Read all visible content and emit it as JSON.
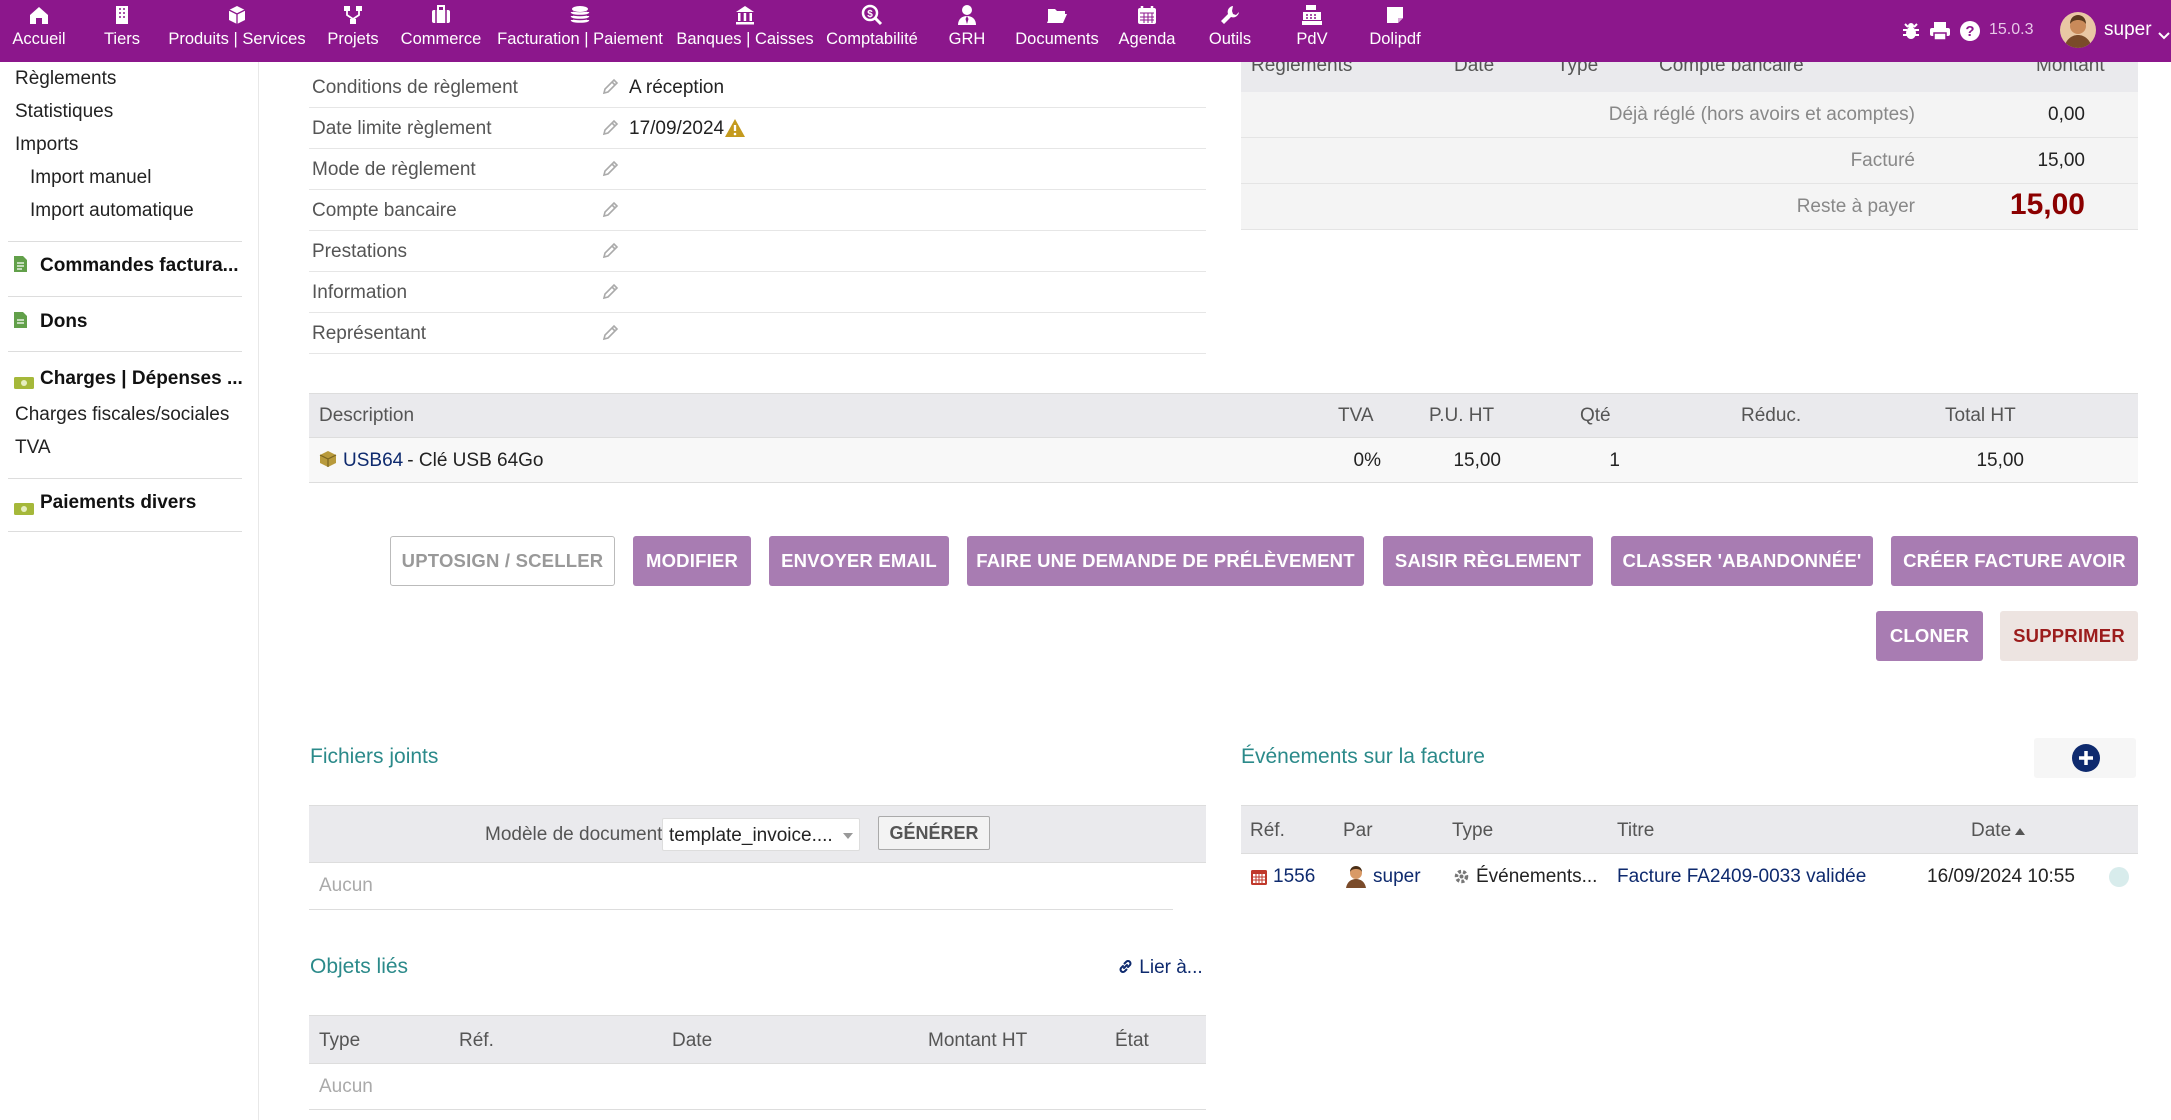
{
  "topbar": {
    "menu": [
      {
        "label": "Accueil",
        "icon": "home-icon"
      },
      {
        "label": "Tiers",
        "icon": "building-icon"
      },
      {
        "label": "Produits | Services",
        "icon": "cube-icon"
      },
      {
        "label": "Projets",
        "icon": "sitemap-icon"
      },
      {
        "label": "Commerce",
        "icon": "suitcase-icon"
      },
      {
        "label": "Facturation | Paiement",
        "icon": "coins-icon"
      },
      {
        "label": "Banques | Caisses",
        "icon": "bank-icon"
      },
      {
        "label": "Comptabilité",
        "icon": "search-dollar-icon"
      },
      {
        "label": "GRH",
        "icon": "user-tie-icon"
      },
      {
        "label": "Documents",
        "icon": "folder-open-icon"
      },
      {
        "label": "Agenda",
        "icon": "calendar-icon"
      },
      {
        "label": "Outils",
        "icon": "wrench-icon"
      },
      {
        "label": "PdV",
        "icon": "cash-register-icon"
      },
      {
        "label": "Dolipdf",
        "icon": "sticky-note-icon"
      }
    ],
    "version": "15.0.3",
    "username": "super"
  },
  "sidebar": {
    "links": [
      "Règlements",
      "Statistiques",
      "Imports"
    ],
    "sublinks": [
      "Import manuel",
      "Import automatique"
    ],
    "sections": [
      {
        "label": "Commandes factura...",
        "icon": "file-invoice-icon"
      },
      {
        "label": "Dons",
        "icon": "file-icon"
      },
      {
        "label": "Charges | Dépenses ...",
        "icon": "money-bill-icon"
      }
    ],
    "charges_links": [
      "Charges fiscales/sociales",
      "TVA"
    ],
    "section_divers": {
      "label": "Paiements divers",
      "icon": "money-bill-icon"
    }
  },
  "fields": [
    {
      "label": "Conditions de règlement",
      "value": "A réception"
    },
    {
      "label": "Date limite règlement",
      "value": "17/09/2024"
    },
    {
      "label": "Mode de règlement",
      "value": ""
    },
    {
      "label": "Compte bancaire",
      "value": ""
    },
    {
      "label": "Prestations",
      "value": ""
    },
    {
      "label": "Information",
      "value": ""
    },
    {
      "label": "Représentant",
      "value": ""
    }
  ],
  "payments": {
    "headers": [
      "Règlements",
      "Date",
      "Type",
      "Compte bancaire",
      "Montant"
    ],
    "rows": [
      {
        "label": "Déjà réglé (hors avoirs et acomptes)",
        "value": "0,00"
      },
      {
        "label": "Facturé",
        "value": "15,00"
      }
    ],
    "remaining_label": "Reste à payer",
    "remaining_value": "15,00",
    "remaining_color": "#8b0000"
  },
  "lines": {
    "headers": [
      "Description",
      "TVA",
      "P.U. HT",
      "Qté",
      "Réduc.",
      "Total HT"
    ],
    "rows": [
      {
        "ref": "USB64",
        "desc": " - Clé USB 64Go",
        "tva": "0%",
        "pu": "15,00",
        "qty": "1",
        "reduc": "",
        "total": "15,00"
      }
    ]
  },
  "actions": {
    "uptosign": "UPTOSIGN / SCELLER",
    "modifier": "MODIFIER",
    "email": "ENVOYER EMAIL",
    "prelevement": "FAIRE UNE DEMANDE DE PRÉLÈVEMENT",
    "reglement": "SAISIR RÈGLEMENT",
    "abandon": "CLASSER 'ABANDONNÉE'",
    "avoir": "CRÉER FACTURE AVOIR",
    "cloner": "CLONER",
    "supprimer": "SUPPRIMER",
    "button_color": "#a87cb2"
  },
  "files": {
    "title": "Fichiers joints",
    "model_label": "Modèle de document",
    "model_value": "template_invoice....",
    "generate": "GÉNÉRER",
    "empty": "Aucun"
  },
  "events": {
    "title": "Événements sur la facture",
    "headers": [
      "Réf.",
      "Par",
      "Type",
      "Titre",
      "Date"
    ],
    "rows": [
      {
        "ref": "1556",
        "by": "super",
        "type": "Événements...",
        "title": "Facture FA2409-0033 validée",
        "date": "16/09/2024 10:55"
      }
    ]
  },
  "linked": {
    "title": "Objets liés",
    "link_label": "Lier à...",
    "headers": [
      "Type",
      "Réf.",
      "Date",
      "Montant HT",
      "État"
    ],
    "empty": "Aucun"
  },
  "colors": {
    "topbar": "#8c178c",
    "section_title": "#2b8a8a",
    "link": "#0e2a6e"
  }
}
